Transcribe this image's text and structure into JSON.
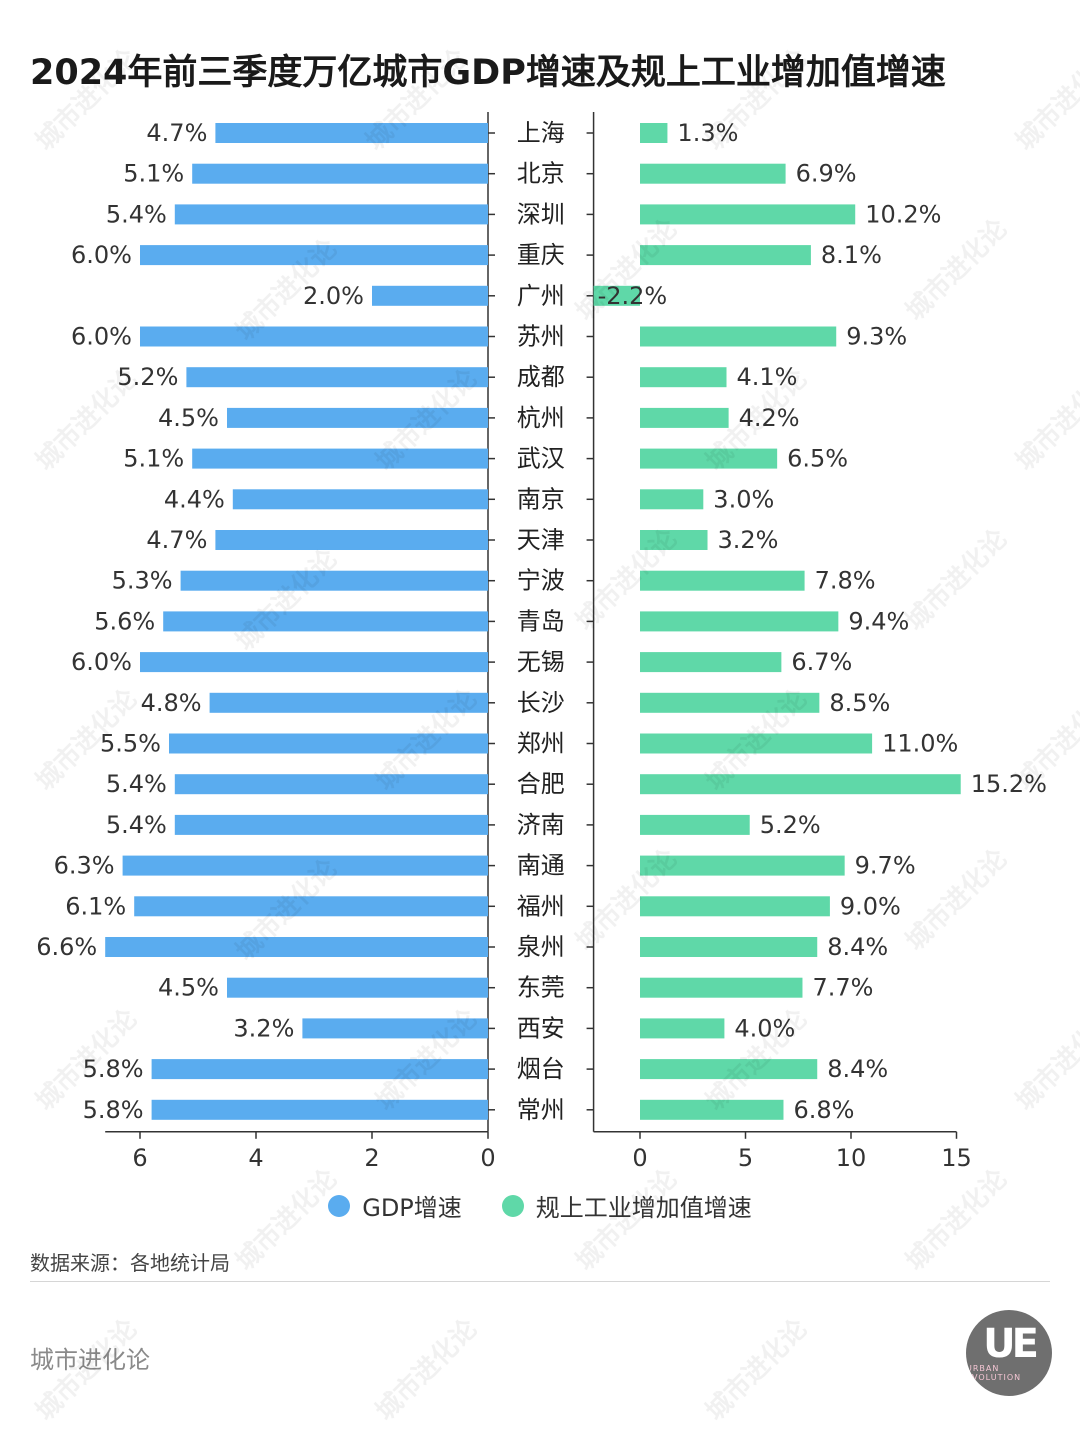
{
  "title": "2024年前三季度万亿城市GDP增速及规上工业增加值增速",
  "colors": {
    "gdp": "#5aacef",
    "industry": "#5fd8a8",
    "axis": "#333333"
  },
  "chart_data": {
    "type": "bar",
    "orientation": "horizontal",
    "categories": [
      "上海",
      "北京",
      "深圳",
      "重庆",
      "广州",
      "苏州",
      "成都",
      "杭州",
      "武汉",
      "南京",
      "天津",
      "宁波",
      "青岛",
      "无锡",
      "长沙",
      "郑州",
      "合肥",
      "济南",
      "南通",
      "福州",
      "泉州",
      "东莞",
      "西安",
      "烟台",
      "常州"
    ],
    "series": [
      {
        "name": "GDP增速",
        "values": [
          4.7,
          5.1,
          5.4,
          6.0,
          2.0,
          6.0,
          5.2,
          4.5,
          5.1,
          4.4,
          4.7,
          5.3,
          5.6,
          6.0,
          4.8,
          5.5,
          5.4,
          5.4,
          6.3,
          6.1,
          6.6,
          4.5,
          3.2,
          5.8,
          5.8
        ],
        "labels": [
          "4.7%",
          "5.1%",
          "5.4%",
          "6.0%",
          "2.0%",
          "6.0%",
          "5.2%",
          "4.5%",
          "5.1%",
          "4.4%",
          "4.7%",
          "5.3%",
          "5.6%",
          "6.0%",
          "4.8%",
          "5.5%",
          "5.4%",
          "5.4%",
          "6.3%",
          "6.1%",
          "6.6%",
          "4.5%",
          "3.2%",
          "5.8%",
          "5.8%"
        ],
        "xlim": [
          6.6,
          0
        ],
        "ticks": [
          6,
          4,
          2,
          0
        ],
        "tick_labels": [
          "6",
          "4",
          "2",
          "0"
        ]
      },
      {
        "name": "规上工业增加值增速",
        "values": [
          1.3,
          6.9,
          10.2,
          8.1,
          -2.2,
          9.3,
          4.1,
          4.2,
          6.5,
          3.0,
          3.2,
          7.8,
          9.4,
          6.7,
          8.5,
          11.0,
          15.2,
          5.2,
          9.7,
          9.0,
          8.4,
          7.7,
          4.0,
          8.4,
          6.8
        ],
        "labels": [
          "1.3%",
          "6.9%",
          "10.2%",
          "8.1%",
          "-2.2%",
          "9.3%",
          "4.1%",
          "4.2%",
          "6.5%",
          "3.0%",
          "3.2%",
          "7.8%",
          "9.4%",
          "6.7%",
          "8.5%",
          "11.0%",
          "15.2%",
          "5.2%",
          "9.7%",
          "9.0%",
          "8.4%",
          "7.7%",
          "4.0%",
          "8.4%",
          "6.8%"
        ],
        "xlim": [
          -2.2,
          15
        ],
        "ticks": [
          0,
          5,
          10,
          15
        ],
        "tick_labels": [
          "0",
          "5",
          "10",
          "15"
        ]
      }
    ],
    "legend": "bottom-center",
    "grid": false
  },
  "legend": {
    "gdp_label": "GDP增速",
    "industry_label": "规上工业增加值增速"
  },
  "source": "数据来源：各地统计局",
  "brand": "城市进化论",
  "logo": {
    "mark": "UE",
    "text": "URBAN EVOLUTION"
  },
  "watermark": {
    "text": "城市进化论"
  }
}
